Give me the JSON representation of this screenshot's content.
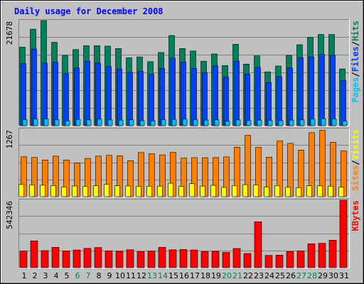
{
  "title": "Daily usage for December 2008",
  "colors": {
    "background": "#c0c0c0",
    "hits": "#00805c",
    "files": "#0040ff",
    "pages": "#00c0ff",
    "visits": "#ffff00",
    "sites": "#ff8000",
    "kbytes": "#ff0000",
    "weekend_label": "#00805c",
    "weekday_label": "#000000",
    "title_color": "#0000ff"
  },
  "chart_data": [
    {
      "type": "bar",
      "panel": "hits-files-pages",
      "y_max_label": "21678",
      "ylim": [
        0,
        21678
      ],
      "legend_placement": "right",
      "legend": [
        {
          "key": "pages",
          "label": "Pages",
          "color": "#00c0ff"
        },
        {
          "key": "sep1",
          "label": "/",
          "color": "#000000"
        },
        {
          "key": "files",
          "label": "Files",
          "color": "#0040ff"
        },
        {
          "key": "sep2",
          "label": "/",
          "color": "#000000"
        },
        {
          "key": "hits",
          "label": "Hits",
          "color": "#00805c"
        }
      ],
      "categories": [
        "1",
        "2",
        "3",
        "4",
        "5",
        "6",
        "7",
        "8",
        "9",
        "10",
        "11",
        "12",
        "13",
        "14",
        "15",
        "16",
        "17",
        "18",
        "19",
        "20",
        "21",
        "22",
        "23",
        "24",
        "25",
        "26",
        "27",
        "28",
        "29",
        "30",
        "31"
      ],
      "series": [
        {
          "name": "Hits",
          "color": "#00805c",
          "values": [
            16200,
            19900,
            21678,
            17200,
            14500,
            15700,
            16500,
            16500,
            16400,
            15900,
            14000,
            14200,
            13200,
            15100,
            18600,
            15900,
            15400,
            13300,
            14800,
            12400,
            16800,
            12700,
            14400,
            11100,
            12300,
            14500,
            16700,
            18200,
            18800,
            18800,
            11700
          ]
        },
        {
          "name": "Files",
          "color": "#0040ff",
          "values": [
            12800,
            15800,
            12900,
            13100,
            10700,
            11900,
            13300,
            12900,
            12200,
            11700,
            11000,
            11200,
            10600,
            11800,
            13900,
            13100,
            11800,
            10900,
            12300,
            10000,
            13300,
            10600,
            12000,
            8900,
            10100,
            11900,
            14000,
            14200,
            14700,
            14500,
            9300
          ]
        },
        {
          "name": "Pages",
          "color": "#00c0ff",
          "values": [
            1250,
            1350,
            1400,
            1250,
            1000,
            1300,
            1200,
            1350,
            1200,
            1150,
            1200,
            1050,
            1000,
            1250,
            1300,
            1350,
            1250,
            1150,
            1200,
            950,
            1200,
            1050,
            1150,
            1100,
            1050,
            1150,
            1200,
            1350,
            1450,
            1400,
            950
          ]
        }
      ]
    },
    {
      "type": "bar",
      "panel": "sites-visits",
      "y_max_label": "1267",
      "ylim": [
        0,
        1267
      ],
      "legend_placement": "right",
      "legend": [
        {
          "key": "sites",
          "label": "Sites",
          "color": "#ff8000"
        },
        {
          "key": "sep1",
          "label": "/",
          "color": "#000000"
        },
        {
          "key": "visits",
          "label": "Visits",
          "color": "#ffff00"
        }
      ],
      "categories": [
        "1",
        "2",
        "3",
        "4",
        "5",
        "6",
        "7",
        "8",
        "9",
        "10",
        "11",
        "12",
        "13",
        "14",
        "15",
        "16",
        "17",
        "18",
        "19",
        "20",
        "21",
        "22",
        "23",
        "24",
        "25",
        "26",
        "27",
        "28",
        "29",
        "30",
        "31"
      ],
      "series": [
        {
          "name": "Sites",
          "color": "#ff8000",
          "values": [
            750,
            738,
            690,
            762,
            690,
            632,
            719,
            762,
            776,
            767,
            676,
            829,
            808,
            785,
            833,
            725,
            734,
            732,
            735,
            748,
            930,
            1153,
            926,
            743,
            1047,
            1002,
            874,
            1201,
            1244,
            1021,
            857
          ]
        },
        {
          "name": "Visits",
          "color": "#ffff00",
          "values": [
            228,
            221,
            215,
            207,
            183,
            202,
            193,
            205,
            232,
            204,
            202,
            195,
            196,
            197,
            252,
            193,
            246,
            199,
            213,
            174,
            209,
            224,
            220,
            182,
            209,
            176,
            170,
            206,
            205,
            198,
            180
          ]
        }
      ]
    },
    {
      "type": "bar",
      "panel": "kbytes",
      "y_max_label": "542346",
      "ylim": [
        0,
        542346
      ],
      "legend_placement": "right",
      "legend": [
        {
          "key": "kbytes",
          "label": "KBytes",
          "color": "#ff0000"
        }
      ],
      "categories": [
        "1",
        "2",
        "3",
        "4",
        "5",
        "6",
        "7",
        "8",
        "9",
        "10",
        "11",
        "12",
        "13",
        "14",
        "15",
        "16",
        "17",
        "18",
        "19",
        "20",
        "21",
        "22",
        "23",
        "24",
        "25",
        "26",
        "27",
        "28",
        "29",
        "30",
        "31"
      ],
      "series": [
        {
          "name": "KBytes",
          "color": "#ff0000",
          "values": [
            133000,
            215000,
            137000,
            164000,
            134000,
            142000,
            155000,
            162000,
            135000,
            132000,
            144000,
            129000,
            133000,
            164000,
            144000,
            146000,
            142000,
            130000,
            132000,
            123000,
            154000,
            114000,
            369000,
            99000,
            101000,
            130000,
            134000,
            192000,
            196000,
            221000,
            542346
          ]
        }
      ]
    }
  ],
  "x_axis": {
    "days": [
      "1",
      "2",
      "3",
      "4",
      "5",
      "6",
      "7",
      "8",
      "9",
      "10",
      "11",
      "12",
      "13",
      "14",
      "15",
      "16",
      "17",
      "18",
      "19",
      "20",
      "21",
      "22",
      "23",
      "24",
      "25",
      "26",
      "27",
      "28",
      "29",
      "30",
      "31"
    ],
    "weekend_days": [
      6,
      7,
      13,
      14,
      20,
      21,
      27,
      28
    ]
  }
}
